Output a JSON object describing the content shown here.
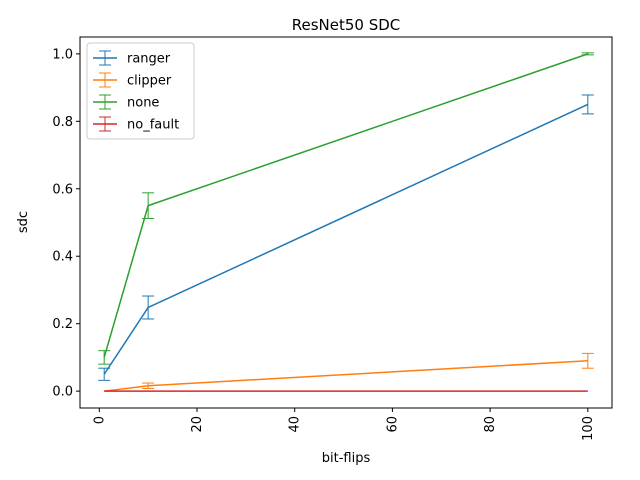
{
  "chart_data": {
    "type": "line",
    "title": "ResNet50 SDC",
    "xlabel": "bit-flips",
    "ylabel": "sdc",
    "x": [
      1,
      10,
      100
    ],
    "xlim": [
      -3.95,
      104.95
    ],
    "ylim": [
      -0.05,
      1.05
    ],
    "xticks": [
      0,
      20,
      40,
      60,
      80,
      100
    ],
    "yticks": [
      0.0,
      0.2,
      0.4,
      0.6,
      0.8,
      1.0
    ],
    "xtick_labels": [
      "0",
      "20",
      "40",
      "60",
      "80",
      "100"
    ],
    "ytick_labels": [
      "0.0",
      "0.2",
      "0.4",
      "0.6",
      "0.8",
      "1.0"
    ],
    "xtick_rotation": "vertical",
    "grid": false,
    "legend_position": "upper-left",
    "series": [
      {
        "name": "ranger",
        "color": "#1f77b4",
        "values": [
          0.05,
          0.248,
          0.85
        ],
        "errors": [
          0.018,
          0.034,
          0.028
        ]
      },
      {
        "name": "clipper",
        "color": "#ff7f0e",
        "values": [
          0.0,
          0.016,
          0.09
        ],
        "errors": [
          0.0,
          0.008,
          0.022
        ]
      },
      {
        "name": "none",
        "color": "#2ca02c",
        "values": [
          0.1,
          0.55,
          1.0
        ],
        "errors": [
          0.02,
          0.038,
          0.003
        ]
      },
      {
        "name": "no_fault",
        "color": "#d62728",
        "values": [
          0.0,
          0.0,
          0.0
        ],
        "errors": [
          0.0,
          0.0,
          0.0
        ]
      }
    ]
  }
}
